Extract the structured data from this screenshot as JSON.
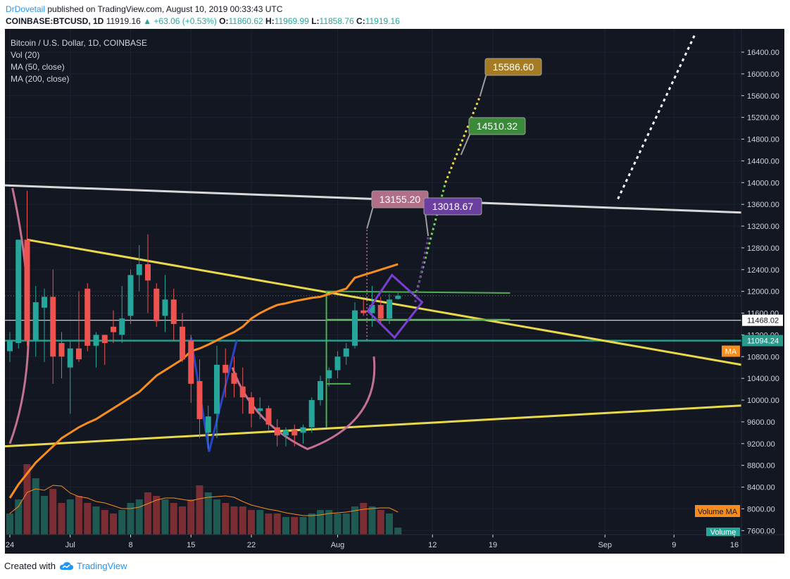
{
  "header": {
    "author": "DrDovetail",
    "published": "published on TradingView.com, August 10, 2019 00:33:43 UTC"
  },
  "ohlc": {
    "symbol": "COINBASE:BTCUSD, 1D",
    "last": "11919.16",
    "change": "▲ +63.06 (+0.53%)",
    "o_label": "O:",
    "o": "11860.62",
    "h_label": "H:",
    "h": "11969.99",
    "l_label": "L:",
    "l": "11858.76",
    "c_label": "C:",
    "c": "11919.16"
  },
  "legend": {
    "title": "Bitcoin / U.S. Dollar, 1D, COINBASE",
    "vol": "Vol (20)",
    "ma50": "MA (50, close)",
    "ma200": "MA (200, close)"
  },
  "footer": {
    "created": "Created with",
    "brand": "TradingView"
  },
  "colors": {
    "background": "#131722",
    "up": "#26a69a",
    "down": "#ef5350",
    "trendline": "#e8d84a",
    "ma50": "#f68d1e",
    "white_line": "#d8d8d8",
    "cup": "#c2718e",
    "horizontal": "#2a9a8d",
    "green_box": "#4caf50"
  },
  "chart_data": {
    "type": "candlestick",
    "y_ticks": [
      "16400.00",
      "16000.00",
      "15600.00",
      "15200.00",
      "14800.00",
      "14400.00",
      "14000.00",
      "13600.00",
      "13200.00",
      "12800.00",
      "12400.00",
      "12000.00",
      "11600.00",
      "11200.00",
      "10800.00",
      "10400.00",
      "10000.00",
      "9600.00",
      "9200.00",
      "8800.00",
      "8400.00",
      "8000.00",
      "7600.00"
    ],
    "ylim": [
      7500,
      16750
    ],
    "x_labels": [
      {
        "text": "24",
        "i": 0
      },
      {
        "text": "Jul",
        "i": 7
      },
      {
        "text": "8",
        "i": 14
      },
      {
        "text": "15",
        "i": 21
      },
      {
        "text": "22",
        "i": 28
      },
      {
        "text": "Aug",
        "i": 38
      },
      {
        "text": "12",
        "i": 49
      },
      {
        "text": "19",
        "i": 56
      },
      {
        "text": "Sep",
        "i": 69
      },
      {
        "text": "9",
        "i": 77
      },
      {
        "text": "16",
        "i": 84
      }
    ],
    "candles": [
      [
        10900,
        11250,
        10700,
        11100
      ],
      [
        11050,
        12900,
        10950,
        12950
      ],
      [
        12950,
        13850,
        11000,
        11100
      ],
      [
        11100,
        12100,
        10800,
        11800
      ],
      [
        11700,
        12050,
        10700,
        11900
      ],
      [
        11900,
        12400,
        10300,
        10800
      ],
      [
        11050,
        11250,
        10400,
        10800
      ],
      [
        10600,
        11100,
        9750,
        10950
      ],
      [
        10950,
        12000,
        10700,
        10750
      ],
      [
        12050,
        12150,
        10900,
        11000
      ],
      [
        11000,
        11250,
        10600,
        11200
      ],
      [
        11200,
        11200,
        10650,
        11050
      ],
      [
        11350,
        11650,
        11050,
        11250
      ],
      [
        11200,
        12100,
        11050,
        11500
      ],
      [
        11550,
        12400,
        11400,
        12300
      ],
      [
        12300,
        12850,
        12000,
        12500
      ],
      [
        12500,
        13050,
        11600,
        12200
      ],
      [
        12050,
        12150,
        11350,
        11450
      ],
      [
        11550,
        12300,
        11250,
        11850
      ],
      [
        11850,
        12050,
        11100,
        11400
      ],
      [
        11350,
        11600,
        10700,
        10750
      ],
      [
        11100,
        11200,
        9950,
        10300
      ],
      [
        10350,
        10750,
        9300,
        9650
      ],
      [
        9400,
        9900,
        9100,
        9700
      ],
      [
        9750,
        11000,
        9300,
        10650
      ],
      [
        10650,
        10950,
        10050,
        10500
      ],
      [
        10500,
        10800,
        10050,
        10300
      ],
      [
        10250,
        10600,
        9750,
        10050
      ],
      [
        10050,
        10150,
        9500,
        9750
      ],
      [
        9800,
        10050,
        9650,
        9850
      ],
      [
        9850,
        9900,
        9450,
        9550
      ],
      [
        9500,
        9650,
        9150,
        9350
      ],
      [
        9350,
        9500,
        9150,
        9450
      ],
      [
        9450,
        9550,
        9150,
        9350
      ],
      [
        9400,
        9550,
        9200,
        9500
      ],
      [
        9500,
        10050,
        9400,
        10000
      ],
      [
        10000,
        10450,
        9900,
        10350
      ],
      [
        10400,
        10600,
        10250,
        10550
      ],
      [
        10550,
        10900,
        10400,
        10800
      ],
      [
        10800,
        11050,
        10650,
        10950
      ],
      [
        11000,
        11800,
        10950,
        11650
      ],
      [
        11650,
        11850,
        11550,
        11600
      ],
      [
        11600,
        12100,
        11350,
        11750
      ],
      [
        11750,
        11900,
        11400,
        11500
      ],
      [
        11500,
        11950,
        11400,
        11850
      ],
      [
        11860,
        11970,
        11850,
        11920
      ]
    ],
    "volume_k": [
      12,
      20,
      40,
      32,
      22,
      26,
      18,
      20,
      22,
      18,
      16,
      14,
      12,
      14,
      18,
      20,
      24,
      22,
      20,
      18,
      16,
      20,
      28,
      24,
      20,
      18,
      16,
      16,
      14,
      14,
      12,
      12,
      10,
      10,
      10,
      12,
      14,
      14,
      12,
      12,
      16,
      18,
      16,
      14,
      12,
      4
    ],
    "ma50": [
      8200,
      8450,
      8650,
      8850,
      9000,
      9150,
      9300,
      9400,
      9500,
      9580,
      9650,
      9750,
      9850,
      9950,
      10050,
      10150,
      10300,
      10450,
      10550,
      10650,
      10750,
      10900,
      10950,
      11020,
      11100,
      11180,
      11250,
      11350,
      11500,
      11600,
      11680,
      11750,
      11780,
      11820,
      11850,
      11880,
      11900,
      11950,
      12000,
      12050,
      12250,
      12300,
      12350,
      12400,
      12450,
      12500
    ],
    "ma200": [
      6100,
      6200,
      6300,
      6400,
      6480,
      6550,
      6620,
      6700,
      6780,
      6850,
      6920,
      7000,
      7050,
      7100,
      7160,
      7220,
      7280,
      7340,
      7400,
      7460,
      7520,
      7580,
      7640,
      7700,
      7760,
      7820,
      7880,
      7940,
      8000,
      8060,
      8120,
      8180,
      8240,
      8300,
      8360,
      8420,
      8480,
      8540,
      8600,
      8660,
      8720,
      8780,
      8840,
      8900,
      8960,
      9020
    ],
    "h_levels": [
      {
        "text": "11468.02",
        "value": 11468.02,
        "color": "#ffffff"
      },
      {
        "text": "11094.24",
        "value": 11094.24,
        "color": "#2a9a8d"
      }
    ],
    "targets": [
      {
        "text": "15586.60",
        "value": 15586.6,
        "color": "#a57c23"
      },
      {
        "text": "14510.32",
        "value": 14510.32,
        "color": "#3a8a3a"
      },
      {
        "text": "13155.20",
        "value": 13155.2,
        "color": "#b06f86"
      },
      {
        "text": "13018.67",
        "value": 13018.67,
        "color": "#6a3fa0"
      }
    ],
    "axis_tags": {
      "ma": "MA",
      "volume_ma": "Volume MA",
      "volume": "Volume"
    }
  }
}
